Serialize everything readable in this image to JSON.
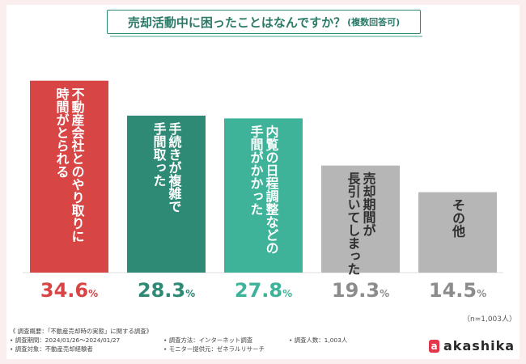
{
  "colors": {
    "background": "#fbeeee",
    "bars": [
      "#d84545",
      "#2e8a74",
      "#3fb39a",
      "#b6b6b6",
      "#b6b6b6"
    ],
    "value_colors": [
      "#d84545",
      "#2e8a74",
      "#3fb39a",
      "#8c8c8c",
      "#8c8c8c"
    ]
  },
  "chart_data": {
    "type": "bar",
    "title": "売却活動中に困ったことはなんですか？",
    "subtitle": "(複数回答可)",
    "categories": [
      "不動産会社とのやり取りに時間がとられる",
      "手続きが複雑で手間取った",
      "内覧の日程調整などの手間がかかった",
      "売却期間が長引いてしまった",
      "その他"
    ],
    "bar_label_lines": [
      [
        "不動産会社とのやり取りに",
        "時間がとられる"
      ],
      [
        "手続きが複雑で",
        "手間取った"
      ],
      [
        "内覧の日程調整などの",
        "手間がかかった"
      ],
      [
        "売却期間が",
        "長引いてしまった"
      ],
      [
        "その他"
      ]
    ],
    "value_numbers": [
      "34.6",
      "28.3",
      "27.8",
      "19.3",
      "14.5"
    ],
    "value_unit": "%",
    "values": [
      34.6,
      28.3,
      27.8,
      19.3,
      14.5
    ],
    "ylim": [
      0,
      35
    ],
    "xlabel": "",
    "ylabel": "",
    "grid": false
  },
  "sample_note": "（n=1,003人）",
  "survey": {
    "overview": "《 調査概要：「不動産売却時の実態」に関する調査》",
    "period": "• 調査期間：2024/01/26～2024/01/27",
    "target": "• 調査対象：不動産売却経験者",
    "method": "• 調査方法：インターネット調査",
    "monitor": "• モニター提供元：ゼネラルリサーチ",
    "count": "• 調査人数：1,003人"
  },
  "logo": {
    "mark": "a",
    "word": "akashika"
  }
}
